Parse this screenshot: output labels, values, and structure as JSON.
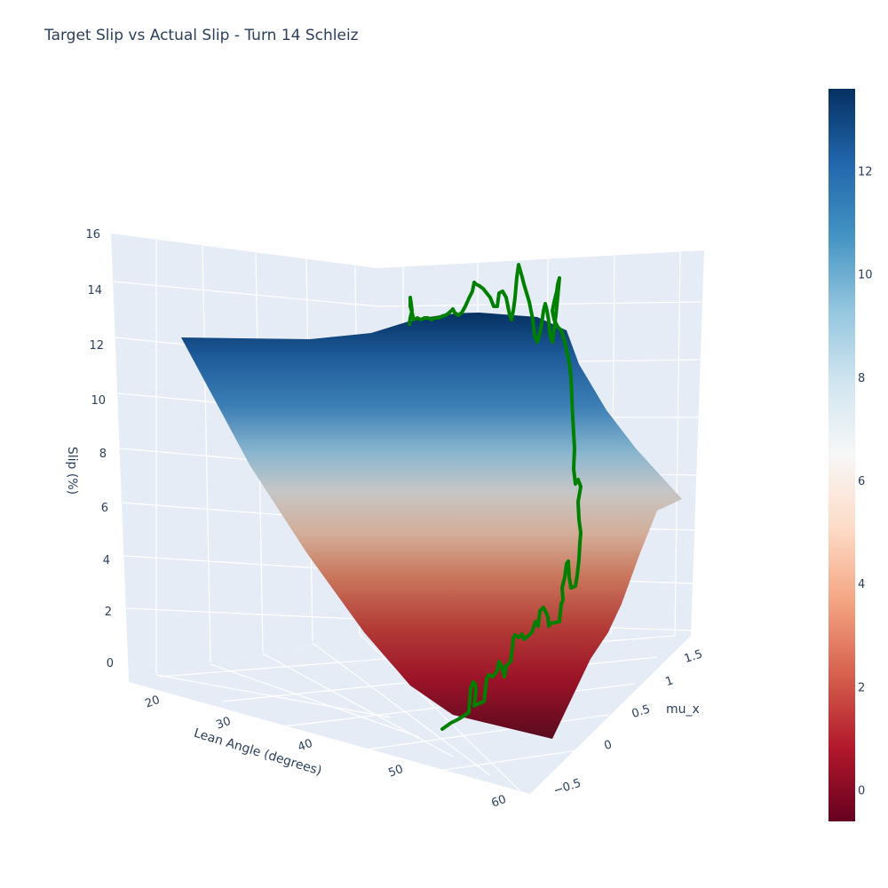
{
  "chart_data": {
    "type": "surface",
    "title": "Target Slip vs Actual Slip - Turn 14 Schleiz",
    "x_axis": {
      "label": "Lean Angle (degrees)",
      "ticks": [
        "20",
        "30",
        "40",
        "50",
        "60"
      ],
      "range": [
        15,
        62
      ]
    },
    "y_axis": {
      "label": "mu_x",
      "ticks": [
        "−0.5",
        "0",
        "0.5",
        "1",
        "1.5"
      ],
      "range": [
        -0.7,
        1.7
      ]
    },
    "z_axis": {
      "label": "Slip (%)",
      "ticks": [
        "0",
        "2",
        "4",
        "6",
        "8",
        "10",
        "12",
        "14",
        "16"
      ],
      "range": [
        -0.5,
        16
      ]
    },
    "grid": true,
    "colorbar": {
      "colorscale": "RdBu",
      "range": [
        -0.6,
        13.6
      ],
      "ticks": [
        "0",
        "2",
        "4",
        "6",
        "8",
        "10",
        "12"
      ],
      "tick_values": [
        0,
        2,
        4,
        6,
        8,
        10,
        12
      ]
    },
    "series": [
      {
        "type": "surface",
        "corner_slip_values": {
          "low_lean_high_mu": 12.3,
          "high_lean_high_mu": 13.2,
          "high_lean_low_mu": 0.0,
          "low_lean_low_mu": 6.3
        }
      },
      {
        "type": "line",
        "color": "#008000",
        "slip_range": [
          0.5,
          15.5
        ]
      }
    ]
  }
}
